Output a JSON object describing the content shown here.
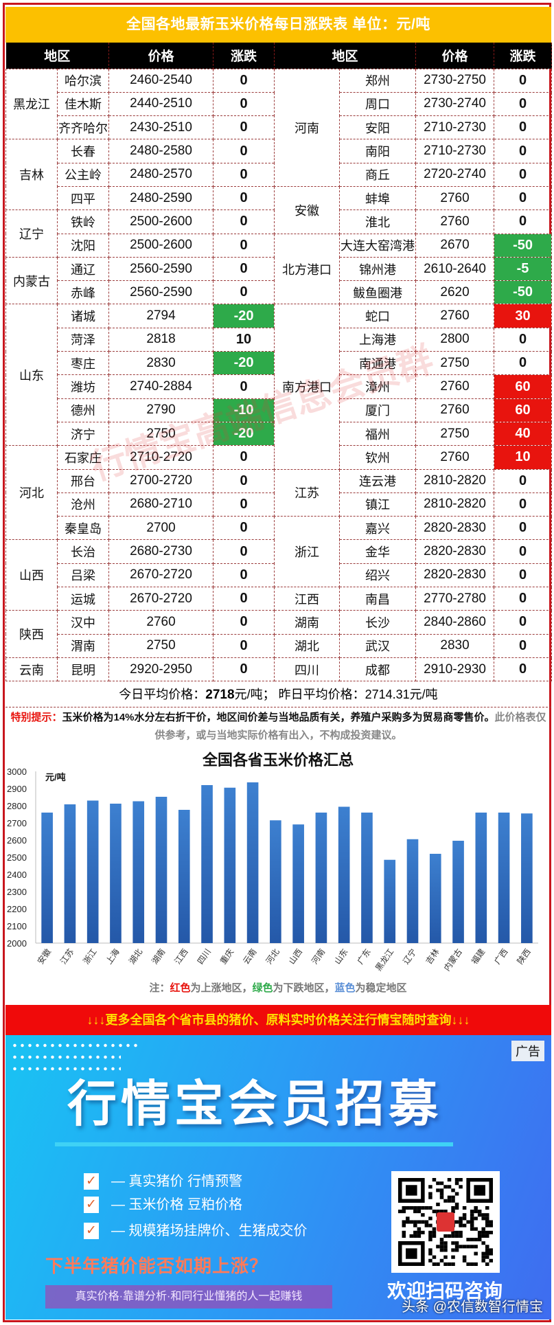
{
  "title": "全国各地最新玉米价格每日涨跌表   单位：元/吨",
  "headers": [
    "地区",
    "价格",
    "涨跌",
    "地区",
    "价格",
    "涨跌"
  ],
  "left_groups": [
    {
      "province": "黑龙江",
      "cities": [
        {
          "city": "哈尔滨",
          "price": "2460-2540",
          "chg": "0"
        },
        {
          "city": "佳木斯",
          "price": "2440-2510",
          "chg": "0"
        },
        {
          "city": "齐齐哈尔",
          "price": "2430-2510",
          "chg": "0"
        }
      ]
    },
    {
      "province": "吉林",
      "cities": [
        {
          "city": "长春",
          "price": "2480-2580",
          "chg": "0"
        },
        {
          "city": "公主岭",
          "price": "2480-2570",
          "chg": "0"
        },
        {
          "city": "四平",
          "price": "2480-2590",
          "chg": "0"
        }
      ]
    },
    {
      "province": "辽宁",
      "cities": [
        {
          "city": "铁岭",
          "price": "2500-2600",
          "chg": "0"
        },
        {
          "city": "沈阳",
          "price": "2500-2600",
          "chg": "0"
        }
      ]
    },
    {
      "province": "内蒙古",
      "cities": [
        {
          "city": "通辽",
          "price": "2560-2590",
          "chg": "0"
        },
        {
          "city": "赤峰",
          "price": "2560-2590",
          "chg": "0"
        }
      ]
    },
    {
      "province": "山东",
      "cities": [
        {
          "city": "诸城",
          "price": "2794",
          "chg": "-20",
          "hl": "down"
        },
        {
          "city": "菏泽",
          "price": "2818",
          "chg": "10"
        },
        {
          "city": "枣庄",
          "price": "2830",
          "chg": "-20",
          "hl": "down"
        },
        {
          "city": "潍坊",
          "price": "2740-2884",
          "chg": "0"
        },
        {
          "city": "德州",
          "price": "2790",
          "chg": "-10",
          "hl": "down"
        },
        {
          "city": "济宁",
          "price": "2750",
          "chg": "-20",
          "hl": "down"
        }
      ]
    },
    {
      "province": "河北",
      "cities": [
        {
          "city": "石家庄",
          "price": "2710-2720",
          "chg": "0"
        },
        {
          "city": "邢台",
          "price": "2700-2720",
          "chg": "0"
        },
        {
          "city": "沧州",
          "price": "2680-2710",
          "chg": "0"
        },
        {
          "city": "秦皇岛",
          "price": "2700",
          "chg": "0"
        }
      ]
    },
    {
      "province": "山西",
      "cities": [
        {
          "city": "长治",
          "price": "2680-2730",
          "chg": "0"
        },
        {
          "city": "吕梁",
          "price": "2670-2720",
          "chg": "0"
        },
        {
          "city": "运城",
          "price": "2670-2720",
          "chg": "0"
        }
      ]
    },
    {
      "province": "陕西",
      "cities": [
        {
          "city": "汉中",
          "price": "2760",
          "chg": "0"
        },
        {
          "city": "渭南",
          "price": "2750",
          "chg": "0"
        }
      ]
    },
    {
      "province": "云南",
      "cities": [
        {
          "city": "昆明",
          "price": "2920-2950",
          "chg": "0"
        }
      ]
    }
  ],
  "right_groups": [
    {
      "province": "河南",
      "cities": [
        {
          "city": "郑州",
          "price": "2730-2750",
          "chg": "0"
        },
        {
          "city": "周口",
          "price": "2730-2740",
          "chg": "0"
        },
        {
          "city": "安阳",
          "price": "2710-2730",
          "chg": "0"
        },
        {
          "city": "南阳",
          "price": "2710-2730",
          "chg": "0"
        },
        {
          "city": "商丘",
          "price": "2720-2740",
          "chg": "0"
        }
      ]
    },
    {
      "province": "安徽",
      "cities": [
        {
          "city": "蚌埠",
          "price": "2760",
          "chg": "0"
        },
        {
          "city": "淮北",
          "price": "2760",
          "chg": "0"
        }
      ]
    },
    {
      "province": "北方港口",
      "cities": [
        {
          "city": "大连大窑湾港",
          "price": "2670",
          "chg": "-50",
          "hl": "down"
        },
        {
          "city": "锦州港",
          "price": "2610-2640",
          "chg": "-5",
          "hl": "down"
        },
        {
          "city": "鲅鱼圈港",
          "price": "2620",
          "chg": "-50",
          "hl": "down"
        }
      ]
    },
    {
      "province": "南方港口",
      "cities": [
        {
          "city": "蛇口",
          "price": "2760",
          "chg": "30",
          "hl": "up"
        },
        {
          "city": "上海港",
          "price": "2800",
          "chg": "0"
        },
        {
          "city": "南通港",
          "price": "2750",
          "chg": "0"
        },
        {
          "city": "漳州",
          "price": "2760",
          "chg": "60",
          "hl": "up"
        },
        {
          "city": "厦门",
          "price": "2760",
          "chg": "60",
          "hl": "up"
        },
        {
          "city": "福州",
          "price": "2750",
          "chg": "40",
          "hl": "up"
        },
        {
          "city": "钦州",
          "price": "2760",
          "chg": "10",
          "hl": "up"
        }
      ]
    },
    {
      "province": "江苏",
      "cities": [
        {
          "city": "连云港",
          "price": "2810-2820",
          "chg": "0"
        },
        {
          "city": "镇江",
          "price": "2810-2820",
          "chg": "0"
        }
      ]
    },
    {
      "province": "浙江",
      "cities": [
        {
          "city": "嘉兴",
          "price": "2820-2830",
          "chg": "0"
        },
        {
          "city": "金华",
          "price": "2820-2830",
          "chg": "0"
        },
        {
          "city": "绍兴",
          "price": "2820-2830",
          "chg": "0"
        }
      ]
    },
    {
      "province": "江西",
      "cities": [
        {
          "city": "南昌",
          "price": "2770-2780",
          "chg": "0"
        }
      ]
    },
    {
      "province": "湖南",
      "cities": [
        {
          "city": "长沙",
          "price": "2840-2860",
          "chg": "0"
        }
      ]
    },
    {
      "province": "湖北",
      "cities": [
        {
          "city": "武汉",
          "price": "2830",
          "chg": "0"
        }
      ]
    },
    {
      "province": "四川",
      "cities": [
        {
          "city": "成都",
          "price": "2910-2930",
          "chg": "0"
        }
      ]
    }
  ],
  "colors": {
    "up": "#e8140e",
    "down": "#2eaa4a",
    "header": "#000000",
    "title_bg": "#fcc000",
    "bar": "#2f6fc0"
  },
  "average": {
    "today_label": "今日平均价格：",
    "today_value": "2718",
    "today_unit": "元/吨；",
    "yesterday_label": "昨日平均价格：",
    "yesterday_value": "2714.31元/吨"
  },
  "note": {
    "label": "特别提示：",
    "main": "玉米价格为14%水分左右折干价，地区间价差与当地品质有关，养殖户采购多为贸易商零售价。",
    "gray": "此价格表仅供参考，或与当地实际价格有出入，不构成投资建议。"
  },
  "watermark": "行情宝高端信息会员群",
  "chart_data": {
    "type": "bar",
    "title": "全国各省玉米价格汇总",
    "ylabel": "元/吨",
    "ylim": [
      2000,
      3000
    ],
    "yticks": [
      2000,
      2100,
      2200,
      2300,
      2400,
      2500,
      2600,
      2700,
      2800,
      2900,
      3000
    ],
    "categories": [
      "安徽",
      "江苏",
      "浙江",
      "上海",
      "湖北",
      "湖南",
      "江西",
      "四川",
      "重庆",
      "云南",
      "河北",
      "山西",
      "河南",
      "山东",
      "广东",
      "黑龙江",
      "辽宁",
      "吉林",
      "内蒙古",
      "福建",
      "广西",
      "陕西"
    ],
    "values": [
      2760,
      2808,
      2830,
      2812,
      2826,
      2852,
      2776,
      2920,
      2905,
      2936,
      2715,
      2691,
      2760,
      2794,
      2760,
      2485,
      2605,
      2520,
      2596,
      2760,
      2760,
      2755
    ],
    "grid": false,
    "legend_note": {
      "prefix": "注：",
      "red": "红色",
      "red_text": "为上涨地区，",
      "green": "绿色",
      "green_text": "为下跌地区，",
      "blue": "蓝色",
      "blue_text": "为稳定地区"
    }
  },
  "banner": "↓↓↓更多全国各个省市县的猪价、原料实时价格关注行情宝随时查询↓↓↓",
  "ad": {
    "tag": "广告",
    "headline": "行情宝会员招募",
    "features": [
      "— 真实猪价  行情预警",
      "— 玉米价格  豆粕价格",
      "— 规模猪场挂牌价、生猪成交价"
    ],
    "check": "✓",
    "question": "下半年猪价能否如期上涨？",
    "subline": "真实价格·靠谱分析·和同行业懂猪的人一起赚钱",
    "scan": "欢迎扫码咨询",
    "source": "头条 @农信数智行情宝"
  }
}
